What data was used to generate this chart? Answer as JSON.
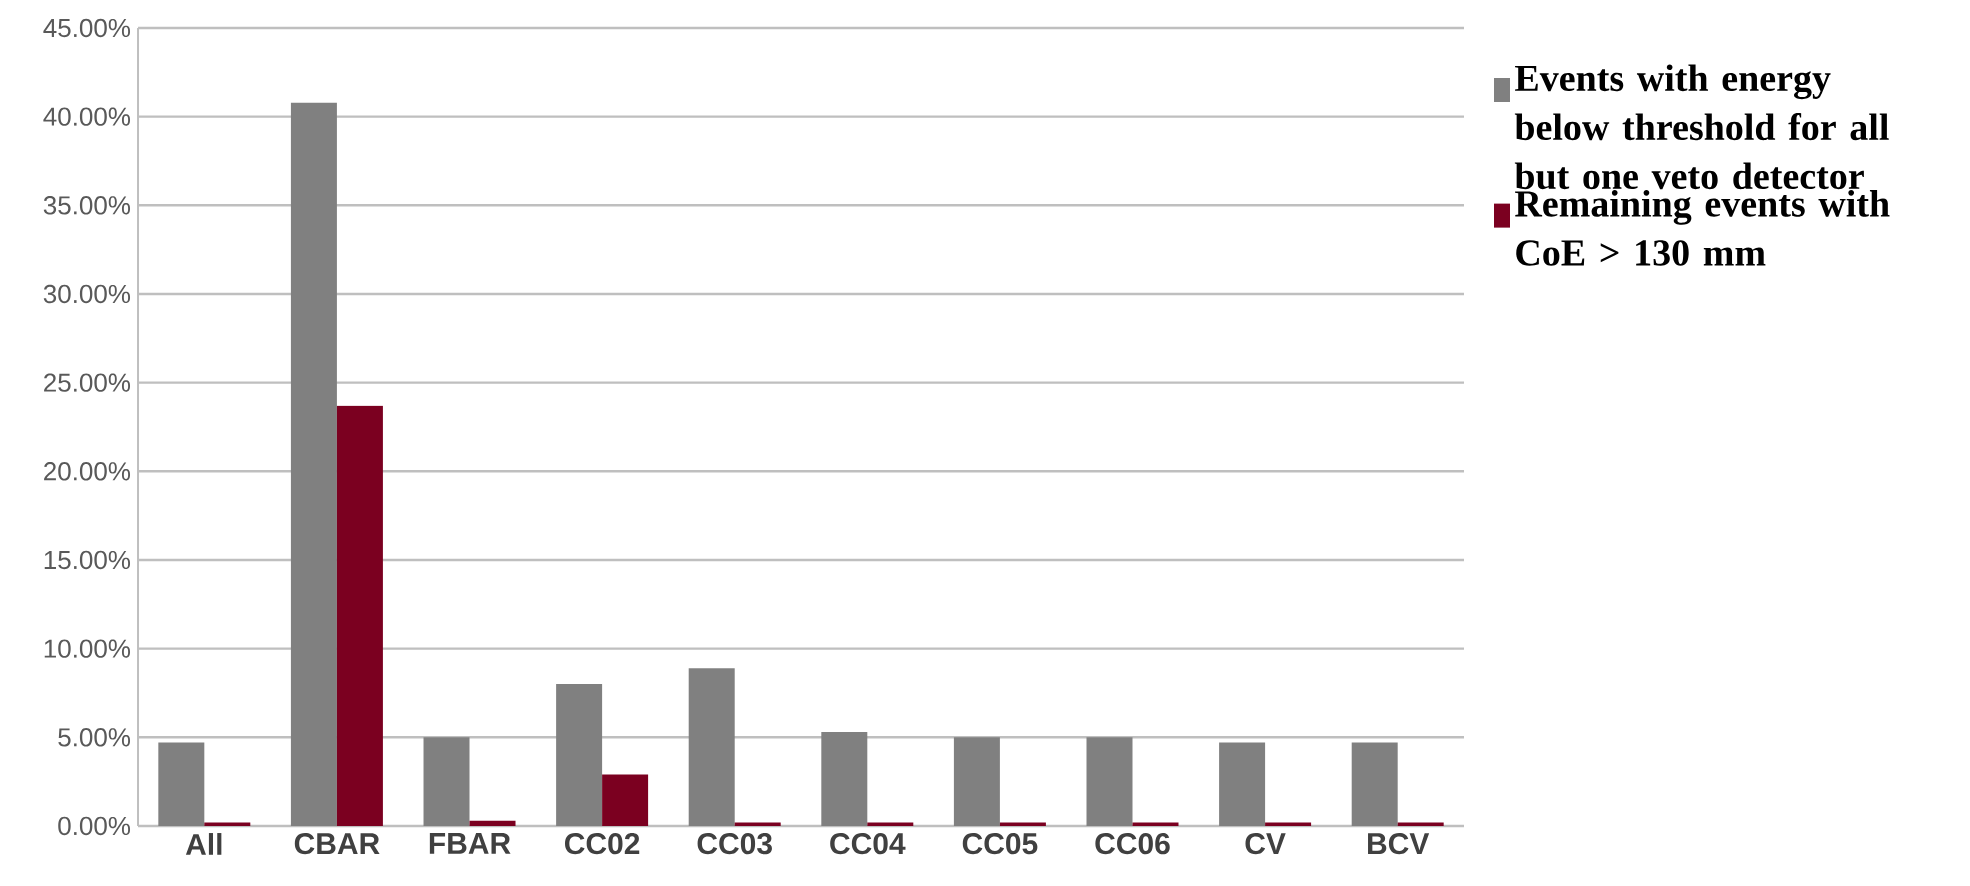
{
  "chart_data": {
    "type": "bar",
    "categories": [
      "All",
      "CBAR",
      "FBAR",
      "CC02",
      "CC03",
      "CC04",
      "CC05",
      "CC06",
      "CV",
      "BCV"
    ],
    "series": [
      {
        "name": "Events with energy below threshold for all but one veto detector",
        "color": "#808080",
        "values": [
          4.7,
          40.8,
          5.0,
          8.0,
          8.9,
          5.3,
          5.0,
          5.0,
          4.7,
          4.7
        ]
      },
      {
        "name": "Remaining events with CoE > 130 mm",
        "color": "#7b0020",
        "values": [
          0.2,
          23.7,
          0.3,
          2.9,
          0.2,
          0.2,
          0.2,
          0.2,
          0.2,
          0.2
        ]
      }
    ],
    "ylim": [
      0,
      45
    ],
    "yticks": [
      {
        "value": 0,
        "label": "0.00%"
      },
      {
        "value": 5,
        "label": "5.00%"
      },
      {
        "value": 10,
        "label": "10.00%"
      },
      {
        "value": 15,
        "label": "15.00%"
      },
      {
        "value": 20,
        "label": "20.00%"
      },
      {
        "value": 25,
        "label": "25.00%"
      },
      {
        "value": 30,
        "label": "30.00%"
      },
      {
        "value": 35,
        "label": "35.00%"
      },
      {
        "value": 40,
        "label": "40.00%"
      },
      {
        "value": 45,
        "label": "45.00%"
      }
    ],
    "grid": "y",
    "legend": "right"
  }
}
